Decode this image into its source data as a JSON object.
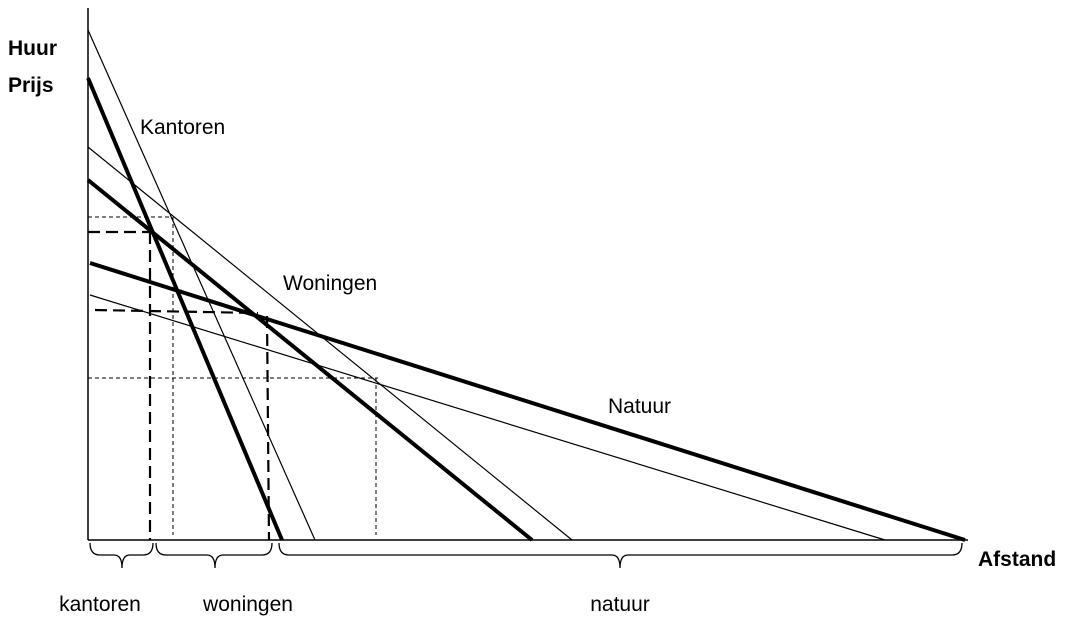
{
  "axes": {
    "y_label": [
      "Huur",
      "Prijs"
    ],
    "x_label": "Afstand"
  },
  "curves": [
    "Kantoren",
    "Woningen",
    "Natuur"
  ],
  "zones": [
    "kantoren",
    "woningen",
    "natuur"
  ]
}
